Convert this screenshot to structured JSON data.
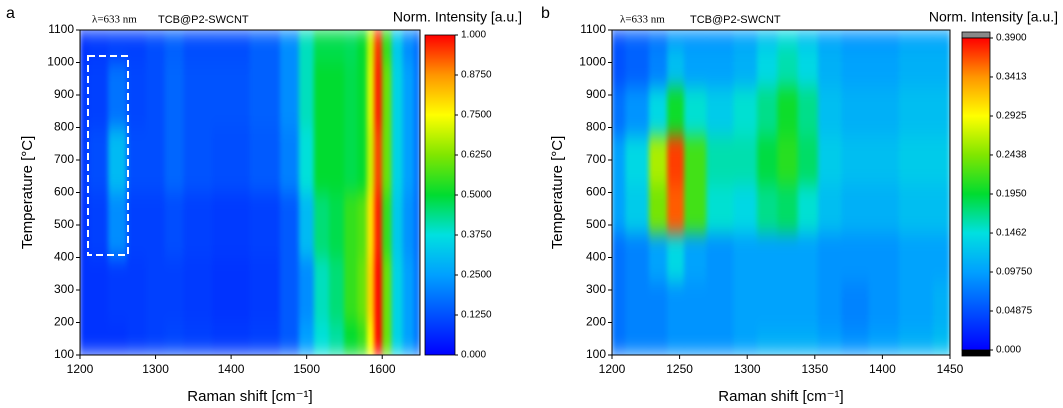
{
  "chart_data": [
    {
      "type": "heatmap",
      "panel_label": "a",
      "annotations": [
        "λ=633 nm",
        "TCB@P2-SWCNT"
      ],
      "xlabel": "Raman shift [cm⁻¹]",
      "ylabel": "Temperature [°C]",
      "colorbar_title": "Norm. Intensity [a.u.]",
      "xlim": [
        1200,
        1650
      ],
      "xticks": [
        1200,
        1300,
        1400,
        1500,
        1600
      ],
      "ylim": [
        100,
        1100
      ],
      "yticks": [
        100,
        200,
        300,
        400,
        500,
        600,
        700,
        800,
        900,
        1000,
        1100
      ],
      "zlim": [
        0,
        1
      ],
      "zticks": [
        {
          "value": 0,
          "label": "0.000"
        },
        {
          "value": 0.125,
          "label": "0.1250"
        },
        {
          "value": 0.25,
          "label": "0.2500"
        },
        {
          "value": 0.375,
          "label": "0.3750"
        },
        {
          "value": 0.5,
          "label": "0.5000"
        },
        {
          "value": 0.625,
          "label": "0.6250"
        },
        {
          "value": 0.75,
          "label": "0.7500"
        },
        {
          "value": 0.875,
          "label": "0.8750"
        },
        {
          "value": 1,
          "label": "1.000"
        }
      ],
      "colormap": [
        "#0000ff",
        "#0050ff",
        "#00a0ff",
        "#00e0e0",
        "#00dc30",
        "#80e600",
        "#ffff00",
        "#ff9600",
        "#ff0000"
      ],
      "x": [
        1200,
        1225,
        1250,
        1275,
        1300,
        1325,
        1350,
        1400,
        1450,
        1480,
        1500,
        1520,
        1540,
        1560,
        1575,
        1585,
        1595,
        1605,
        1620,
        1635,
        1650
      ],
      "y": [
        100,
        300,
        500,
        700,
        900,
        1100
      ],
      "z": [
        [
          0.08,
          0.08,
          0.08,
          0.09,
          0.1,
          0.11,
          0.1,
          0.09,
          0.1,
          0.14,
          0.25,
          0.38,
          0.42,
          0.5,
          0.55,
          0.75,
          1.0,
          0.6,
          0.35,
          0.25,
          0.18
        ],
        [
          0.08,
          0.08,
          0.09,
          0.09,
          0.1,
          0.1,
          0.09,
          0.08,
          0.09,
          0.14,
          0.22,
          0.4,
          0.45,
          0.55,
          0.6,
          0.8,
          1.0,
          0.6,
          0.35,
          0.25,
          0.18
        ],
        [
          0.08,
          0.1,
          0.22,
          0.1,
          0.1,
          0.12,
          0.1,
          0.09,
          0.1,
          0.14,
          0.3,
          0.45,
          0.48,
          0.55,
          0.58,
          0.78,
          0.98,
          0.55,
          0.33,
          0.23,
          0.17
        ],
        [
          0.09,
          0.12,
          0.3,
          0.12,
          0.12,
          0.16,
          0.13,
          0.12,
          0.14,
          0.2,
          0.38,
          0.5,
          0.5,
          0.48,
          0.5,
          0.7,
          0.95,
          0.6,
          0.35,
          0.25,
          0.18
        ],
        [
          0.09,
          0.1,
          0.18,
          0.11,
          0.12,
          0.16,
          0.13,
          0.13,
          0.15,
          0.22,
          0.4,
          0.5,
          0.5,
          0.48,
          0.5,
          0.72,
          0.98,
          0.6,
          0.35,
          0.25,
          0.18
        ],
        [
          0.08,
          0.09,
          0.1,
          0.1,
          0.12,
          0.15,
          0.12,
          0.12,
          0.15,
          0.22,
          0.4,
          0.48,
          0.48,
          0.47,
          0.5,
          0.7,
          0.96,
          0.55,
          0.33,
          0.22,
          0.17
        ]
      ]
    },
    {
      "type": "heatmap",
      "panel_label": "b",
      "annotations": [
        "λ=633 nm",
        "TCB@P2-SWCNT"
      ],
      "xlabel": "Raman shift [cm⁻¹]",
      "ylabel": "Temperature [°C]",
      "colorbar_title": "Norm. Intensity [a.u.]",
      "xlim": [
        1200,
        1450
      ],
      "xticks": [
        1200,
        1250,
        1300,
        1350,
        1400,
        1450
      ],
      "ylim": [
        100,
        1100
      ],
      "yticks": [
        100,
        200,
        300,
        400,
        500,
        600,
        700,
        800,
        900,
        1000,
        1100
      ],
      "zlim": [
        0,
        0.39
      ],
      "zticks": [
        {
          "value": 0,
          "label": "0.000"
        },
        {
          "value": 0.04875,
          "label": "0.04875"
        },
        {
          "value": 0.0975,
          "label": "0.09750"
        },
        {
          "value": 0.1462,
          "label": "0.1462"
        },
        {
          "value": 0.195,
          "label": "0.1950"
        },
        {
          "value": 0.2438,
          "label": "0.2438"
        },
        {
          "value": 0.2925,
          "label": "0.2925"
        },
        {
          "value": 0.3413,
          "label": "0.3413"
        },
        {
          "value": 0.39,
          "label": "0.3900"
        }
      ],
      "colormap": [
        "#0000ff",
        "#0050ff",
        "#00a0ff",
        "#00e0e0",
        "#00dc30",
        "#80e600",
        "#ffff00",
        "#ff9600",
        "#ff0000"
      ],
      "x": [
        1200,
        1220,
        1235,
        1247,
        1260,
        1280,
        1300,
        1315,
        1330,
        1345,
        1360,
        1380,
        1400,
        1425,
        1450
      ],
      "y": [
        100,
        250,
        400,
        550,
        700,
        850,
        1000,
        1100
      ],
      "z": [
        [
          0.07,
          0.08,
          0.08,
          0.09,
          0.09,
          0.09,
          0.1,
          0.11,
          0.11,
          0.11,
          0.1,
          0.09,
          0.1,
          0.11,
          0.12
        ],
        [
          0.07,
          0.08,
          0.08,
          0.09,
          0.09,
          0.09,
          0.1,
          0.1,
          0.1,
          0.1,
          0.09,
          0.08,
          0.09,
          0.1,
          0.11
        ],
        [
          0.07,
          0.08,
          0.1,
          0.14,
          0.1,
          0.09,
          0.1,
          0.1,
          0.1,
          0.1,
          0.09,
          0.09,
          0.09,
          0.1,
          0.1
        ],
        [
          0.1,
          0.13,
          0.24,
          0.36,
          0.22,
          0.15,
          0.14,
          0.17,
          0.18,
          0.15,
          0.12,
          0.11,
          0.11,
          0.12,
          0.12
        ],
        [
          0.1,
          0.14,
          0.26,
          0.37,
          0.22,
          0.16,
          0.16,
          0.19,
          0.21,
          0.18,
          0.13,
          0.12,
          0.12,
          0.13,
          0.13
        ],
        [
          0.07,
          0.09,
          0.14,
          0.2,
          0.15,
          0.13,
          0.15,
          0.17,
          0.2,
          0.17,
          0.12,
          0.11,
          0.11,
          0.12,
          0.12
        ],
        [
          0.05,
          0.06,
          0.08,
          0.12,
          0.1,
          0.1,
          0.11,
          0.14,
          0.16,
          0.14,
          0.11,
          0.1,
          0.1,
          0.11,
          0.11
        ],
        [
          0.05,
          0.06,
          0.07,
          0.09,
          0.09,
          0.09,
          0.1,
          0.12,
          0.14,
          0.12,
          0.1,
          0.09,
          0.09,
          0.1,
          0.1
        ]
      ]
    }
  ]
}
